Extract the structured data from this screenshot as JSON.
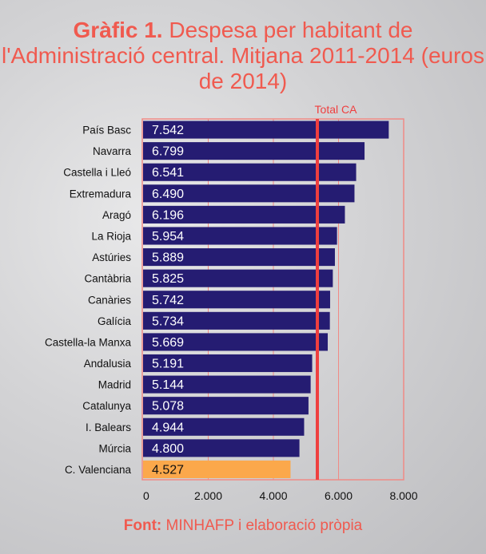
{
  "title": {
    "bold": "Gràfic 1.",
    "text": " Despesa per habitant de l'Administració central. Mitjana 2011-2014 (euros de 2014)"
  },
  "source": {
    "bold": "Font:",
    "text": " MINHAFP i elaboració pròpia"
  },
  "chart_data": {
    "type": "bar",
    "orientation": "horizontal",
    "categories": [
      "País Basc",
      "Navarra",
      "Castella i Lleó",
      "Extremadura",
      "Aragó",
      "La Rioja",
      "Astúries",
      "Cantàbria",
      "Canàries",
      "Galícia",
      "Castella-la Manxa",
      "Andalusia",
      "Madrid",
      "Catalunya",
      "I. Balears",
      "Múrcia",
      "C. Valenciana"
    ],
    "values": [
      7542,
      6799,
      6541,
      6490,
      6196,
      5954,
      5889,
      5825,
      5742,
      5734,
      5669,
      5191,
      5144,
      5078,
      4944,
      4800,
      4527
    ],
    "data_labels": [
      "7.542",
      "6.799",
      "6.541",
      "6.490",
      "6.196",
      "5.954",
      "5.889",
      "5.825",
      "5.742",
      "5.734",
      "5.669",
      "5.191",
      "5.144",
      "5.078",
      "4.944",
      "4.800",
      "4.527"
    ],
    "xlim": [
      0,
      8000
    ],
    "x_ticks": [
      0,
      2000,
      4000,
      6000,
      8000
    ],
    "x_tick_labels": [
      "0",
      "2.000",
      "4.000",
      "6.000",
      "8.000"
    ],
    "grid": true,
    "reference_line": {
      "label": "Total CA",
      "value": 5350,
      "color": "#ef3f3f"
    },
    "colors": {
      "default": "#251c72",
      "highlight": "#fba84b",
      "highlight_category": "C. Valenciana",
      "frame": "#f08a85"
    }
  }
}
